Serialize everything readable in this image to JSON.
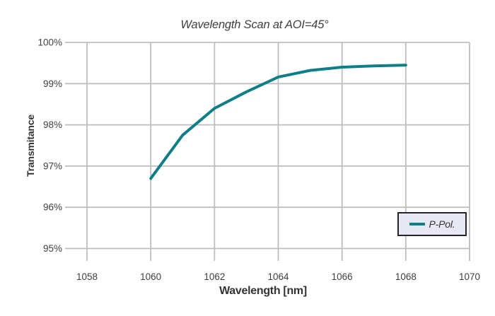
{
  "colors": {
    "line": "#0E7F87",
    "grid": "#BEBEBE",
    "text": "#3F3F3F",
    "axis_title_text": "#333333",
    "legend_bg": "#E8E8F4",
    "legend_border": "#262626",
    "background": "#FFFFFF"
  },
  "legend": {
    "label": "P-Pol.",
    "position": "bottom-right"
  },
  "chart_data": {
    "type": "line",
    "title": "Wavelength Scan at AOI=45°",
    "xlabel": "Wavelength [nm]",
    "ylabel": "Transmitance",
    "series": [
      {
        "name": "P-Pol.",
        "color": "#0E7F87",
        "x": [
          1060,
          1061,
          1062,
          1063,
          1064,
          1065,
          1066,
          1067,
          1068
        ],
        "values": [
          96.7,
          97.75,
          98.4,
          98.8,
          99.16,
          99.32,
          99.4,
          99.43,
          99.45
        ]
      }
    ],
    "xlim": [
      1057.6,
      1070
    ],
    "ylim": [
      95,
      100
    ],
    "xtick_values": [
      1058,
      1060,
      1062,
      1064,
      1066,
      1068,
      1070
    ],
    "xtick_labels": [
      "1058",
      "1060",
      "1062",
      "1064",
      "1066",
      "1068",
      "1070"
    ],
    "ytick_values": [
      95,
      96,
      97,
      98,
      99,
      100
    ],
    "ytick_labels": [
      "95%",
      "96%",
      "97%",
      "98%",
      "99%",
      "100%"
    ],
    "grid": true,
    "legend_position": "bottom-right"
  }
}
